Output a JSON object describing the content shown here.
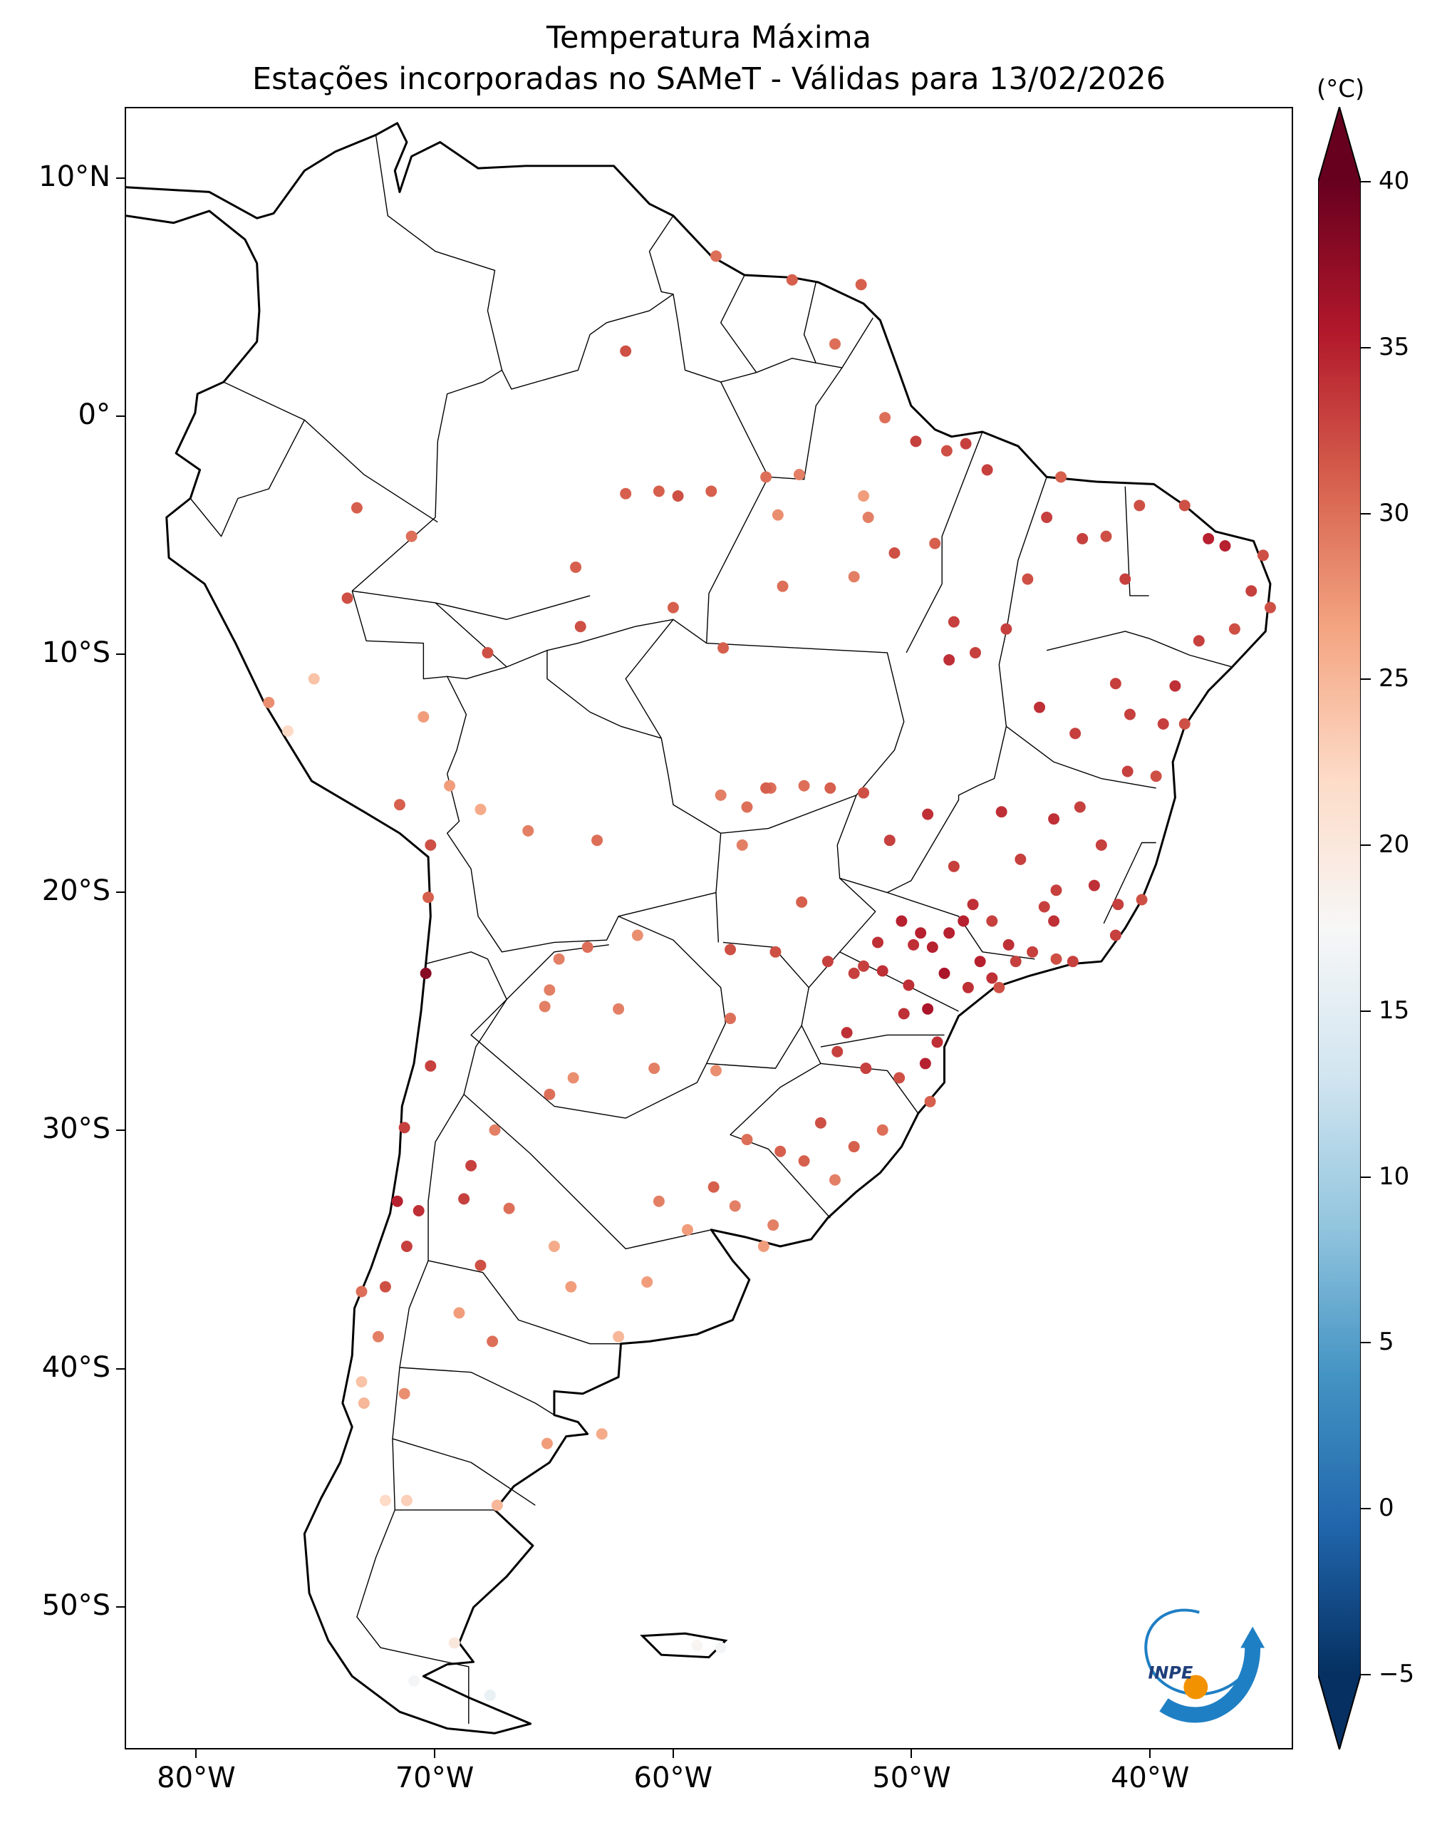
{
  "title": {
    "line1": "Temperatura Máxima",
    "line2": "Estações incorporadas no SAMeT - Válidas para 13/02/2026"
  },
  "map": {
    "lon_range": [
      -83,
      -34
    ],
    "lat_range": [
      -56,
      13
    ],
    "lat_ticks": [
      {
        "value": 10,
        "label": "10°N"
      },
      {
        "value": 0,
        "label": "0°"
      },
      {
        "value": -10,
        "label": "10°S"
      },
      {
        "value": -20,
        "label": "20°S"
      },
      {
        "value": -30,
        "label": "30°S"
      },
      {
        "value": -40,
        "label": "40°S"
      },
      {
        "value": -50,
        "label": "50°S"
      }
    ],
    "lon_ticks": [
      {
        "value": -80,
        "label": "80°W"
      },
      {
        "value": -70,
        "label": "70°W"
      },
      {
        "value": -60,
        "label": "60°W"
      },
      {
        "value": -50,
        "label": "50°W"
      },
      {
        "value": -40,
        "label": "40°W"
      }
    ],
    "stations": [
      [
        -70.5,
        -12.6,
        27
      ],
      [
        -73.7,
        -7.6,
        32
      ],
      [
        -67.8,
        -9.9,
        32
      ],
      [
        -63.9,
        -8.8,
        32
      ],
      [
        -60.0,
        -8.0,
        31
      ],
      [
        -64.1,
        -6.3,
        31
      ],
      [
        -62.0,
        2.8,
        32
      ],
      [
        -60.6,
        -3.1,
        31
      ],
      [
        -59.8,
        -3.3,
        32
      ],
      [
        -58.4,
        -3.1,
        31
      ],
      [
        -56.1,
        -2.5,
        30
      ],
      [
        -54.7,
        -2.4,
        29
      ],
      [
        -55.6,
        -4.1,
        28
      ],
      [
        -51.8,
        -4.2,
        29
      ],
      [
        -52.0,
        -3.3,
        27
      ],
      [
        -49.8,
        -1.0,
        33
      ],
      [
        -48.5,
        -1.4,
        32
      ],
      [
        -47.7,
        -1.1,
        33
      ],
      [
        -46.8,
        -2.2,
        33
      ],
      [
        -49.0,
        -5.3,
        31
      ],
      [
        -50.7,
        -5.7,
        32
      ],
      [
        -52.4,
        -6.7,
        29
      ],
      [
        -55.4,
        -7.1,
        30
      ],
      [
        -57.9,
        -9.7,
        31
      ],
      [
        -48.2,
        -8.6,
        33
      ],
      [
        -48.4,
        -10.2,
        34
      ],
      [
        -47.3,
        -9.9,
        33
      ],
      [
        -46.0,
        -8.9,
        33
      ],
      [
        -45.1,
        -6.8,
        32
      ],
      [
        -44.3,
        -4.2,
        33
      ],
      [
        -43.7,
        -2.5,
        31
      ],
      [
        -42.8,
        -5.1,
        33
      ],
      [
        -41.8,
        -5.0,
        32
      ],
      [
        -41.0,
        -6.8,
        33
      ],
      [
        -40.4,
        -3.7,
        32
      ],
      [
        -38.5,
        -3.7,
        32
      ],
      [
        -37.5,
        -5.1,
        35
      ],
      [
        -36.8,
        -5.4,
        35
      ],
      [
        -35.2,
        -5.8,
        32
      ],
      [
        -35.7,
        -7.3,
        33
      ],
      [
        -34.9,
        -8.0,
        32
      ],
      [
        -36.4,
        -8.9,
        32
      ],
      [
        -37.9,
        -9.4,
        33
      ],
      [
        -38.9,
        -11.3,
        34
      ],
      [
        -41.4,
        -11.2,
        33
      ],
      [
        -44.6,
        -12.2,
        34
      ],
      [
        -43.1,
        -13.3,
        33
      ],
      [
        -40.8,
        -12.5,
        33
      ],
      [
        -39.4,
        -12.9,
        33
      ],
      [
        -38.5,
        -12.9,
        32
      ],
      [
        -39.7,
        -15.1,
        32
      ],
      [
        -40.9,
        -14.9,
        33
      ],
      [
        -42.9,
        -16.4,
        33
      ],
      [
        -44.0,
        -16.9,
        34
      ],
      [
        -46.2,
        -16.6,
        34
      ],
      [
        -45.4,
        -18.6,
        33
      ],
      [
        -43.9,
        -19.9,
        33
      ],
      [
        -42.3,
        -19.7,
        34
      ],
      [
        -41.3,
        -20.5,
        33
      ],
      [
        -40.3,
        -20.3,
        32
      ],
      [
        -41.4,
        -21.8,
        33
      ],
      [
        -43.2,
        -22.9,
        33
      ],
      [
        -43.9,
        -22.8,
        32
      ],
      [
        -44.9,
        -22.5,
        33
      ],
      [
        -45.6,
        -22.9,
        33
      ],
      [
        -46.6,
        -23.6,
        34
      ],
      [
        -47.1,
        -22.9,
        35
      ],
      [
        -47.8,
        -21.2,
        35
      ],
      [
        -48.4,
        -21.7,
        35
      ],
      [
        -49.1,
        -22.3,
        35
      ],
      [
        -49.9,
        -22.2,
        34
      ],
      [
        -50.4,
        -21.2,
        35
      ],
      [
        -51.4,
        -22.1,
        34
      ],
      [
        -47.4,
        -20.5,
        34
      ],
      [
        -46.6,
        -21.2,
        33
      ],
      [
        -48.2,
        -18.9,
        33
      ],
      [
        -49.3,
        -16.7,
        34
      ],
      [
        -50.9,
        -17.8,
        33
      ],
      [
        -52.0,
        -15.8,
        32
      ],
      [
        -53.4,
        -15.6,
        31
      ],
      [
        -54.5,
        -15.5,
        30
      ],
      [
        -55.9,
        -15.6,
        30
      ],
      [
        -56.1,
        -15.6,
        31
      ],
      [
        -56.9,
        -16.4,
        30
      ],
      [
        -58.0,
        -15.9,
        29
      ],
      [
        -57.1,
        -18.0,
        29
      ],
      [
        -54.6,
        -20.4,
        31
      ],
      [
        -55.7,
        -22.5,
        32
      ],
      [
        -53.5,
        -22.9,
        33
      ],
      [
        -52.4,
        -23.4,
        33
      ],
      [
        -51.2,
        -23.3,
        34
      ],
      [
        -50.1,
        -23.9,
        34
      ],
      [
        -49.3,
        -24.9,
        36
      ],
      [
        -48.9,
        -26.3,
        34
      ],
      [
        -49.4,
        -27.2,
        35
      ],
      [
        -50.3,
        -25.1,
        34
      ],
      [
        -52.7,
        -25.9,
        34
      ],
      [
        -53.1,
        -26.7,
        33
      ],
      [
        -51.9,
        -27.4,
        33
      ],
      [
        -50.5,
        -27.8,
        32
      ],
      [
        -49.2,
        -28.8,
        31
      ],
      [
        -51.2,
        -30.0,
        30
      ],
      [
        -52.4,
        -30.7,
        31
      ],
      [
        -53.8,
        -29.7,
        32
      ],
      [
        -55.5,
        -30.9,
        31
      ],
      [
        -56.9,
        -30.4,
        30
      ],
      [
        -54.5,
        -31.3,
        31
      ],
      [
        -53.2,
        -32.1,
        29
      ],
      [
        -55.8,
        -34.0,
        29
      ],
      [
        -56.2,
        -34.9,
        27
      ],
      [
        -57.4,
        -33.2,
        29
      ],
      [
        -58.3,
        -32.4,
        31
      ],
      [
        -59.4,
        -34.2,
        27
      ],
      [
        -60.6,
        -33.0,
        29
      ],
      [
        -61.1,
        -36.4,
        27
      ],
      [
        -62.3,
        -38.7,
        25
      ],
      [
        -64.3,
        -36.6,
        27
      ],
      [
        -65.0,
        -34.9,
        26
      ],
      [
        -66.9,
        -33.3,
        30
      ],
      [
        -68.8,
        -32.9,
        33
      ],
      [
        -68.5,
        -31.5,
        33
      ],
      [
        -67.5,
        -30.0,
        29
      ],
      [
        -65.2,
        -28.5,
        30
      ],
      [
        -64.2,
        -27.8,
        28
      ],
      [
        -65.4,
        -24.8,
        29
      ],
      [
        -65.2,
        -24.1,
        29
      ],
      [
        -64.8,
        -22.8,
        29
      ],
      [
        -63.6,
        -22.3,
        30
      ],
      [
        -62.3,
        -24.9,
        29
      ],
      [
        -60.8,
        -27.4,
        29
      ],
      [
        -58.2,
        -27.5,
        28
      ],
      [
        -57.6,
        -25.3,
        30
      ],
      [
        -57.6,
        -22.4,
        32
      ],
      [
        -61.5,
        -21.8,
        28
      ],
      [
        -63.2,
        -17.8,
        30
      ],
      [
        -66.1,
        -17.4,
        29
      ],
      [
        -68.1,
        -16.5,
        26
      ],
      [
        -69.4,
        -15.5,
        27
      ],
      [
        -71.5,
        -16.3,
        31
      ],
      [
        -70.2,
        -18.0,
        32
      ],
      [
        -70.3,
        -20.2,
        31
      ],
      [
        -70.4,
        -23.4,
        38
      ],
      [
        -70.2,
        -27.3,
        33
      ],
      [
        -71.3,
        -29.9,
        33
      ],
      [
        -71.6,
        -33.0,
        35
      ],
      [
        -70.7,
        -33.4,
        34
      ],
      [
        -71.2,
        -34.9,
        33
      ],
      [
        -72.1,
        -36.6,
        32
      ],
      [
        -73.1,
        -36.8,
        30
      ],
      [
        -72.4,
        -38.7,
        29
      ],
      [
        -73.1,
        -40.6,
        24
      ],
      [
        -73.0,
        -41.5,
        25
      ],
      [
        -71.3,
        -41.1,
        28
      ],
      [
        -67.6,
        -38.9,
        30
      ],
      [
        -69.0,
        -37.7,
        27
      ],
      [
        -68.1,
        -35.7,
        32
      ],
      [
        -71.2,
        -45.6,
        23
      ],
      [
        -72.1,
        -45.6,
        22
      ],
      [
        -67.4,
        -45.8,
        25
      ],
      [
        -65.3,
        -43.2,
        27
      ],
      [
        -63.0,
        -42.8,
        26
      ],
      [
        -69.2,
        -51.6,
        20
      ],
      [
        -70.9,
        -53.2,
        17
      ],
      [
        -67.7,
        -53.8,
        16
      ],
      [
        -59.0,
        -51.7,
        18
      ],
      [
        -58.0,
        -51.8,
        17
      ],
      [
        -76.2,
        -13.2,
        22
      ],
      [
        -77.0,
        -12.0,
        28
      ],
      [
        -75.1,
        -11.0,
        24
      ],
      [
        -73.3,
        -3.8,
        31
      ],
      [
        -71.0,
        -5.0,
        30
      ],
      [
        -62.0,
        -3.2,
        31
      ],
      [
        -51.1,
        0.0,
        30
      ],
      [
        -52.1,
        5.6,
        31
      ],
      [
        -53.2,
        3.1,
        30
      ],
      [
        -55.0,
        5.8,
        31
      ],
      [
        -58.2,
        6.8,
        30
      ],
      [
        -45.9,
        -22.2,
        34
      ],
      [
        -44.4,
        -20.6,
        33
      ],
      [
        -49.6,
        -21.7,
        35
      ],
      [
        -52.0,
        -23.1,
        33
      ],
      [
        -47.6,
        -24.0,
        34
      ],
      [
        -48.6,
        -23.4,
        36
      ],
      [
        -46.3,
        -24.0,
        32
      ],
      [
        -44.0,
        -21.2,
        34
      ],
      [
        -42.0,
        -18.0,
        33
      ]
    ]
  },
  "colorbar": {
    "unit": "(°C)",
    "min": -5,
    "max": 40,
    "ticks": [
      {
        "value": 40,
        "label": "40"
      },
      {
        "value": 35,
        "label": "35"
      },
      {
        "value": 30,
        "label": "30"
      },
      {
        "value": 25,
        "label": "25"
      },
      {
        "value": 20,
        "label": "20"
      },
      {
        "value": 15,
        "label": "15"
      },
      {
        "value": 10,
        "label": "10"
      },
      {
        "value": 5,
        "label": "5"
      },
      {
        "value": 0,
        "label": "0"
      },
      {
        "value": -5,
        "label": "−5"
      }
    ]
  },
  "logo": {
    "text": "INPE"
  },
  "colors": {
    "cmap": [
      "#053061",
      "#2166ac",
      "#4393c3",
      "#92c5de",
      "#d1e5f0",
      "#f7f7f7",
      "#fddbc7",
      "#f4a582",
      "#d6604d",
      "#b2182b",
      "#67001f"
    ],
    "coast": "#000000",
    "logo_blue": "#1f7fc4",
    "logo_orange": "#f39200"
  }
}
